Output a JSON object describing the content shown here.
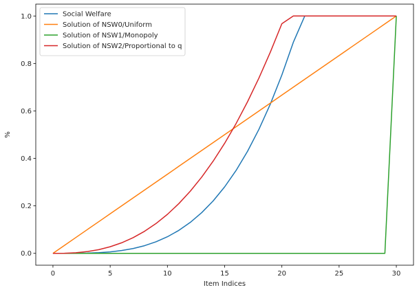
{
  "chart_data": {
    "type": "line",
    "xlabel": "Item Indices",
    "ylabel": "%",
    "xlim": [
      -1.5,
      31.5
    ],
    "ylim": [
      -0.05,
      1.05
    ],
    "xticks": [
      0,
      5,
      10,
      15,
      20,
      25,
      30
    ],
    "yticks": [
      0.0,
      0.2,
      0.4,
      0.6,
      0.8,
      1.0
    ],
    "xtick_labels": [
      "0",
      "5",
      "10",
      "15",
      "20",
      "25",
      "30"
    ],
    "ytick_labels": [
      "0.0",
      "0.2",
      "0.4",
      "0.6",
      "0.8",
      "1.0"
    ],
    "grid": false,
    "legend_position": "top-left",
    "x": [
      0,
      1,
      2,
      3,
      4,
      5,
      6,
      7,
      8,
      9,
      10,
      11,
      12,
      13,
      14,
      15,
      16,
      17,
      18,
      19,
      20,
      21,
      22,
      23,
      24,
      25,
      26,
      27,
      28,
      29,
      30
    ],
    "series": [
      {
        "name": "Social Welfare",
        "color": "#1f77b4",
        "values": [
          0.0,
          0.0,
          0.0003,
          0.001,
          0.0028,
          0.0062,
          0.0118,
          0.0202,
          0.0322,
          0.0485,
          0.0698,
          0.0968,
          0.1305,
          0.1716,
          0.2211,
          0.28,
          0.3492,
          0.4298,
          0.5229,
          0.6297,
          0.7514,
          0.8891,
          1.0,
          1.0,
          1.0,
          1.0,
          1.0,
          1.0,
          1.0,
          1.0,
          1.0
        ]
      },
      {
        "name": "Solution of NSW0/Uniform",
        "color": "#ff7f0e",
        "values": [
          0.0,
          0.0333,
          0.0667,
          0.1,
          0.1333,
          0.1667,
          0.2,
          0.2333,
          0.2667,
          0.3,
          0.3333,
          0.3667,
          0.4,
          0.4333,
          0.4667,
          0.5,
          0.5333,
          0.5667,
          0.6,
          0.6333,
          0.6667,
          0.7,
          0.7333,
          0.7667,
          0.8,
          0.8333,
          0.8667,
          0.9,
          0.9333,
          0.9667,
          1.0
        ]
      },
      {
        "name": "Solution of NSW1/Monopoly",
        "color": "#2ca02c",
        "values": [
          0,
          0,
          0,
          0,
          0,
          0,
          0,
          0,
          0,
          0,
          0,
          0,
          0,
          0,
          0,
          0,
          0,
          0,
          0,
          0,
          0,
          0,
          0,
          0,
          0,
          0,
          0,
          0,
          0,
          0,
          1.0
        ]
      },
      {
        "name": "Solution of NSW2/Proportional to q",
        "color": "#d62728",
        "values": [
          0.0,
          0.0004,
          0.0025,
          0.0074,
          0.0156,
          0.0278,
          0.0444,
          0.0659,
          0.0928,
          0.1254,
          0.1642,
          0.2096,
          0.2619,
          0.3214,
          0.3886,
          0.4636,
          0.5468,
          0.6386,
          0.7391,
          0.8487,
          0.9676,
          1.0,
          1.0,
          1.0,
          1.0,
          1.0,
          1.0,
          1.0,
          1.0,
          1.0,
          1.0
        ]
      }
    ]
  }
}
